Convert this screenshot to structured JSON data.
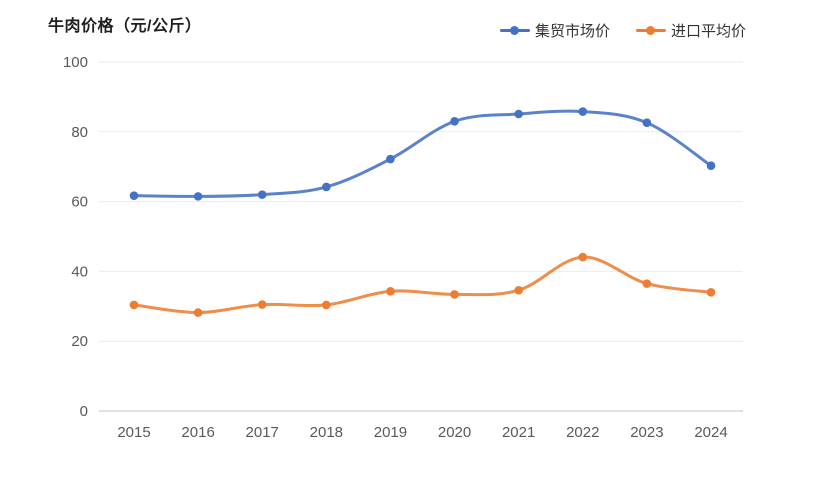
{
  "title": "牛肉价格（元/公斤）",
  "legend": {
    "items": [
      {
        "label": "集贸市场价",
        "color": "#4472C4"
      },
      {
        "label": "进口平均价",
        "color": "#ED7D31"
      }
    ]
  },
  "chart_data": {
    "type": "line",
    "title": "牛肉价格（元/公斤）",
    "x": [
      "2015",
      "2016",
      "2017",
      "2018",
      "2019",
      "2020",
      "2021",
      "2022",
      "2023",
      "2024"
    ],
    "series": [
      {
        "name": "集贸市场价",
        "color": "#4472C4",
        "values": [
          61.7,
          61.5,
          62.0,
          64.2,
          72.2,
          83.0,
          85.1,
          85.8,
          82.6,
          70.3
        ]
      },
      {
        "name": "进口平均价",
        "color": "#ED7D31",
        "values": [
          30.4,
          28.2,
          30.5,
          30.4,
          34.3,
          33.4,
          34.6,
          44.1,
          36.5,
          34.0
        ]
      }
    ],
    "xlabel": "",
    "ylabel": "",
    "ylim": [
      0,
      100
    ],
    "yticks": [
      0,
      20,
      40,
      60,
      80,
      100
    ],
    "grid": true,
    "smooth": true,
    "legend_position": "top-right"
  },
  "colors": {
    "background": "#ffffff",
    "title_text": "#1f1f1f",
    "axis_text": "#595959",
    "gridline": "#ebebef",
    "axis_line": "#c4c4c4"
  }
}
